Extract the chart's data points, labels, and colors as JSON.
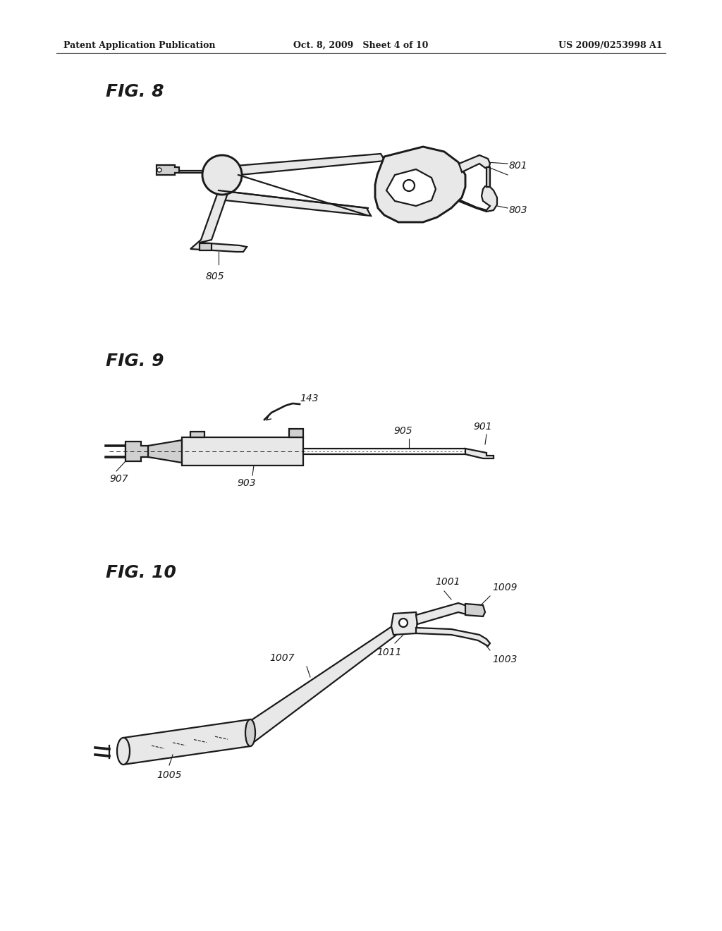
{
  "bg_color": "#ffffff",
  "header_left": "Patent Application Publication",
  "header_mid": "Oct. 8, 2009   Sheet 4 of 10",
  "header_right": "US 2009/0253998 A1",
  "fig8_label": "FIG. 8",
  "fig9_label": "FIG. 9",
  "fig10_label": "FIG. 10",
  "line_color": "#1a1a1a",
  "line_width": 1.6,
  "fill_light": "#e8e8e8",
  "fill_mid": "#d0d0d0",
  "fill_dark": "#b0b0b0"
}
